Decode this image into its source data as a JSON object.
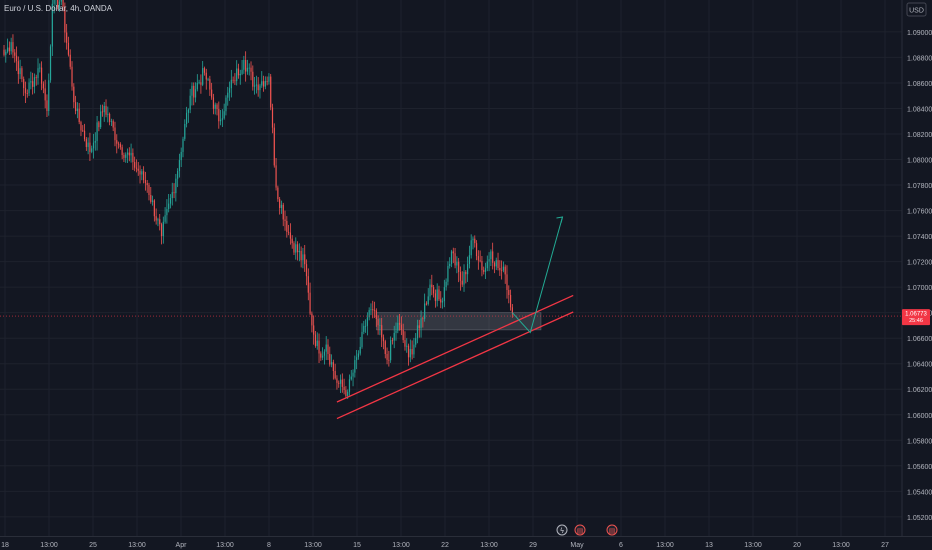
{
  "header": {
    "symbol": "Euro / U.S. Dollar, 4h, OANDA"
  },
  "currency_button": "USD",
  "price_label": {
    "price": "1.06773",
    "countdown": "25:46"
  },
  "events": [
    {
      "name": "lightning-event-icon",
      "glyph": "ϟ"
    },
    {
      "name": "flag-event-icon-1",
      "glyph": "▤"
    },
    {
      "name": "flag-event-icon-2",
      "glyph": "▤"
    }
  ],
  "colors": {
    "background": "#131722",
    "grid": "#1e222d",
    "up": "#26a69a",
    "down": "#ef5350",
    "trendline": "#f23645",
    "projection": "#22ab94",
    "zone": "#9598a1"
  },
  "chart_data": {
    "type": "candlestick",
    "title": "Euro / U.S. Dollar, 4h, OANDA",
    "ylim": [
      1.0505,
      1.0925
    ],
    "y_ticks": [
      "1.09000",
      "1.08800",
      "1.08600",
      "1.08400",
      "1.08200",
      "1.08000",
      "1.07800",
      "1.07600",
      "1.07400",
      "1.07200",
      "1.07000",
      "1.06800",
      "1.06600",
      "1.06400",
      "1.06200",
      "1.06000",
      "1.05800",
      "1.05600",
      "1.05400",
      "1.05200"
    ],
    "x_ticks": [
      "18",
      "13:00",
      "25",
      "13:00",
      "Apr",
      "13:00",
      "8",
      "13:00",
      "15",
      "13:00",
      "22",
      "13:00",
      "29",
      "May",
      "6",
      "13:00",
      "13",
      "13:00",
      "20",
      "13:00",
      "27"
    ],
    "segments": [
      [
        0,
        1.0882
      ],
      [
        4,
        1.0892
      ],
      [
        12,
        1.0852
      ],
      [
        20,
        1.0872
      ],
      [
        24,
        1.0838
      ],
      [
        27,
        1.0922
      ],
      [
        32,
        1.0925
      ],
      [
        40,
        1.0838
      ],
      [
        48,
        1.0806
      ],
      [
        56,
        1.0842
      ],
      [
        64,
        1.0812
      ],
      [
        72,
        1.0798
      ],
      [
        80,
        1.078
      ],
      [
        88,
        1.074
      ],
      [
        96,
        1.0785
      ],
      [
        104,
        1.085
      ],
      [
        112,
        1.0868
      ],
      [
        120,
        1.083
      ],
      [
        128,
        1.0862
      ],
      [
        134,
        1.0878
      ],
      [
        140,
        1.0858
      ],
      [
        148,
        1.0865
      ],
      [
        152,
        1.0778
      ],
      [
        160,
        1.0738
      ],
      [
        168,
        1.0718
      ],
      [
        172,
        1.067
      ],
      [
        176,
        1.0648
      ],
      [
        180,
        1.0655
      ],
      [
        186,
        1.0625
      ],
      [
        192,
        1.0618
      ],
      [
        198,
        1.0648
      ],
      [
        204,
        1.0682
      ],
      [
        208,
        1.0675
      ],
      [
        214,
        1.0643
      ],
      [
        220,
        1.0672
      ],
      [
        226,
        1.0645
      ],
      [
        232,
        1.0668
      ],
      [
        238,
        1.0702
      ],
      [
        244,
        1.0688
      ],
      [
        250,
        1.0728
      ],
      [
        256,
        1.0702
      ],
      [
        262,
        1.0738
      ],
      [
        268,
        1.0712
      ],
      [
        272,
        1.0728
      ],
      [
        276,
        1.0715
      ],
      [
        280,
        1.071
      ],
      [
        284,
        1.068
      ]
    ],
    "resistance_zone": {
      "from_index": 208,
      "to_index": 300,
      "top": 1.068,
      "bottom": 1.06665
    },
    "lower_trendline": {
      "x_from": 186,
      "y_from": 1.0597,
      "x_to": 318,
      "y_to": 1.06805
    },
    "upper_trendline": {
      "x_from": 186,
      "y_from": 1.061,
      "x_to": 318,
      "y_to": 1.06935
    },
    "projection": [
      [
        284,
        1.068
      ],
      [
        294,
        1.06645
      ],
      [
        312,
        1.0755
      ]
    ],
    "current_price": 1.06773
  }
}
